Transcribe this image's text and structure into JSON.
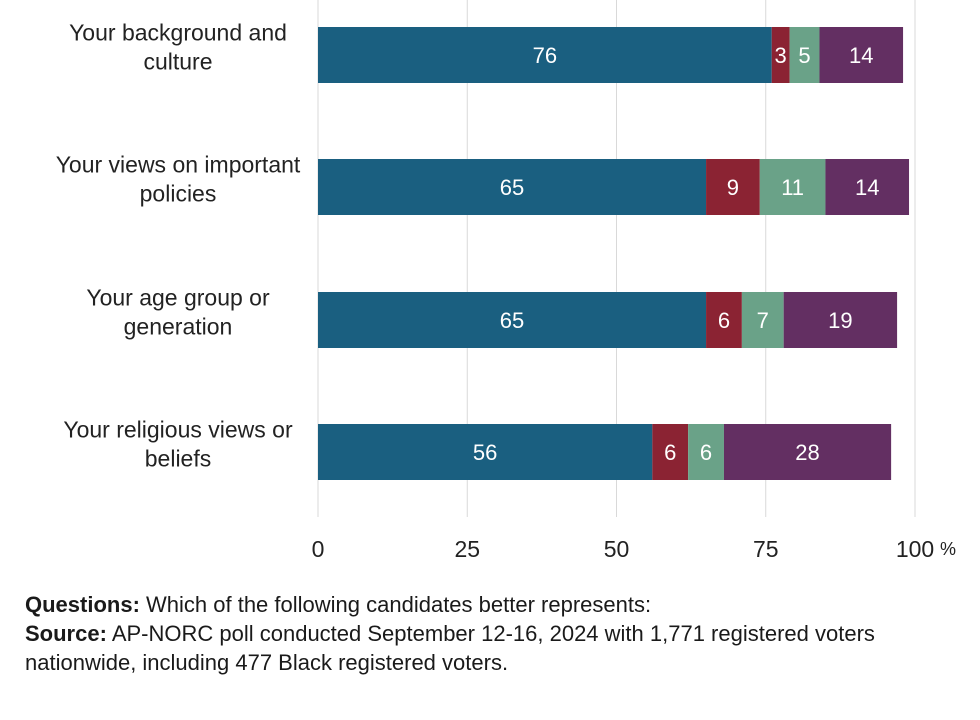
{
  "chart_data": {
    "type": "bar",
    "orientation": "horizontal",
    "stacked": true,
    "categories": [
      [
        "Your background and",
        "culture"
      ],
      [
        "Your views on important",
        "policies"
      ],
      [
        "Your age group or",
        "generation"
      ],
      [
        "Your religious views or",
        "beliefs"
      ]
    ],
    "series": [
      {
        "color": "#1a5f80",
        "values": [
          76,
          65,
          65,
          56
        ]
      },
      {
        "color": "#8b2333",
        "values": [
          3,
          9,
          6,
          6
        ]
      },
      {
        "color": "#6aa288",
        "values": [
          5,
          11,
          7,
          6
        ]
      },
      {
        "color": "#632f62",
        "values": [
          14,
          14,
          19,
          28
        ]
      }
    ],
    "xlim": [
      0,
      100
    ],
    "xticks": [
      0,
      25,
      50,
      75,
      100
    ],
    "x_unit": "%",
    "grid": true,
    "legend": "none"
  },
  "footer": {
    "questions_label": "Questions:",
    "questions_text": " Which of the following candidates better represents:",
    "source_label": "Source:",
    "source_text": " AP-NORC poll conducted September 12-16, 2024 with 1,771 registered voters nationwide, including 477 Black registered voters."
  }
}
